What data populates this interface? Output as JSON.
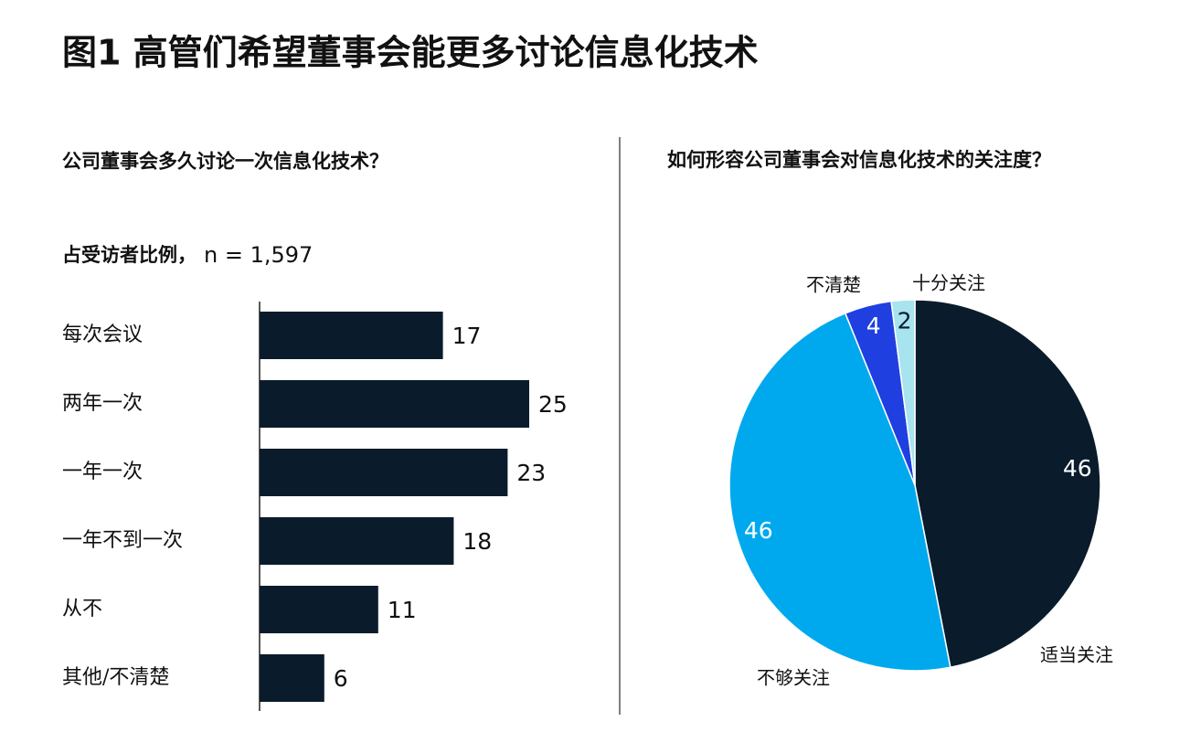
{
  "title": "图1  高管们希望董事会能更多讨论信息化技术",
  "chart_data": [
    {
      "type": "bar",
      "orientation": "horizontal",
      "title": "公司董事会多久讨论一次信息化技术？",
      "subtitle": "占受访者比例，",
      "note": "n = 1,597",
      "categories": [
        "每次会议",
        "两年一次",
        "一年一次",
        "一年不到一次",
        "从不",
        "其他/不清楚"
      ],
      "values": [
        17,
        25,
        23,
        18,
        11,
        6
      ],
      "color": "#0a1c2b"
    },
    {
      "type": "pie",
      "title": "如何形容公司董事会对信息化技术的关注度？",
      "categories": [
        "适当关注",
        "不够关注",
        "不清楚",
        "十分关注"
      ],
      "values": [
        46,
        46,
        4,
        2
      ],
      "colors": [
        "#0a1c2b",
        "#00a9ee",
        "#1f3fe0",
        "#a8e3f0"
      ],
      "label_colors": [
        "#ffffff",
        "#ffffff",
        "#ffffff",
        "#0a1c2b"
      ]
    }
  ]
}
